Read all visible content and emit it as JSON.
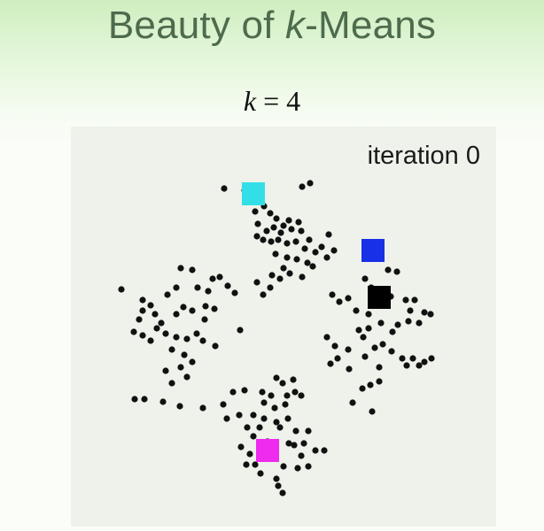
{
  "slide": {
    "title_prefix": "Beauty of ",
    "title_k": "k",
    "title_suffix": "-Means",
    "k_var": "k",
    "k_eq": " = 4"
  },
  "plot": {
    "iteration_label": "iteration 0"
  },
  "chart_data": {
    "type": "scatter",
    "title": "",
    "xlabel": "",
    "ylabel": "",
    "grid": false,
    "xlim": [
      0,
      480
    ],
    "ylim": [
      0,
      452
    ],
    "points": [
      [
        173,
        70
      ],
      [
        196,
        72
      ],
      [
        261,
        68
      ],
      [
        270,
        64
      ],
      [
        208,
        96
      ],
      [
        218,
        90
      ],
      [
        225,
        98
      ],
      [
        232,
        104
      ],
      [
        246,
        106
      ],
      [
        257,
        108
      ],
      [
        240,
        112
      ],
      [
        211,
        110
      ],
      [
        221,
        118
      ],
      [
        229,
        114
      ],
      [
        237,
        120
      ],
      [
        249,
        116
      ],
      [
        260,
        118
      ],
      [
        269,
        128
      ],
      [
        283,
        136
      ],
      [
        291,
        122
      ],
      [
        297,
        140
      ],
      [
        217,
        128
      ],
      [
        210,
        124
      ],
      [
        226,
        130
      ],
      [
        234,
        128
      ],
      [
        244,
        132
      ],
      [
        254,
        130
      ],
      [
        264,
        138
      ],
      [
        276,
        142
      ],
      [
        289,
        148
      ],
      [
        231,
        144
      ],
      [
        244,
        148
      ],
      [
        255,
        150
      ],
      [
        267,
        154
      ],
      [
        240,
        160
      ],
      [
        227,
        168
      ],
      [
        236,
        172
      ],
      [
        247,
        166
      ],
      [
        261,
        170
      ],
      [
        273,
        158
      ],
      [
        225,
        182
      ],
      [
        217,
        190
      ],
      [
        210,
        176
      ],
      [
        124,
        160
      ],
      [
        137,
        162
      ],
      [
        160,
        172
      ],
      [
        168,
        170
      ],
      [
        177,
        180
      ],
      [
        119,
        182
      ],
      [
        143,
        182
      ],
      [
        155,
        186
      ],
      [
        185,
        188
      ],
      [
        109,
        190
      ],
      [
        81,
        196
      ],
      [
        57,
        184
      ],
      [
        81,
        208
      ],
      [
        90,
        202
      ],
      [
        95,
        212
      ],
      [
        77,
        218
      ],
      [
        102,
        222
      ],
      [
        119,
        212
      ],
      [
        127,
        204
      ],
      [
        137,
        208
      ],
      [
        151,
        218
      ],
      [
        152,
        203
      ],
      [
        162,
        206
      ],
      [
        71,
        232
      ],
      [
        81,
        236
      ],
      [
        90,
        242
      ],
      [
        97,
        228
      ],
      [
        107,
        234
      ],
      [
        119,
        238
      ],
      [
        131,
        240
      ],
      [
        142,
        234
      ],
      [
        149,
        242
      ],
      [
        163,
        248
      ],
      [
        191,
        230
      ],
      [
        114,
        252
      ],
      [
        128,
        258
      ],
      [
        137,
        266
      ],
      [
        124,
        272
      ],
      [
        107,
        276
      ],
      [
        114,
        290
      ],
      [
        131,
        283
      ],
      [
        72,
        308
      ],
      [
        83,
        308
      ],
      [
        104,
        311
      ],
      [
        123,
        316
      ],
      [
        149,
        318
      ],
      [
        172,
        314
      ],
      [
        332,
        172
      ],
      [
        339,
        182
      ],
      [
        358,
        162
      ],
      [
        368,
        164
      ],
      [
        295,
        190
      ],
      [
        303,
        198
      ],
      [
        313,
        194
      ],
      [
        322,
        208
      ],
      [
        336,
        212
      ],
      [
        353,
        202
      ],
      [
        361,
        192
      ],
      [
        378,
        196
      ],
      [
        388,
        196
      ],
      [
        383,
        208
      ],
      [
        399,
        210
      ],
      [
        406,
        212
      ],
      [
        325,
        230
      ],
      [
        336,
        228
      ],
      [
        350,
        222
      ],
      [
        363,
        232
      ],
      [
        369,
        224
      ],
      [
        381,
        220
      ],
      [
        393,
        222
      ],
      [
        289,
        238
      ],
      [
        298,
        248
      ],
      [
        313,
        252
      ],
      [
        330,
        238
      ],
      [
        343,
        250
      ],
      [
        352,
        246
      ],
      [
        362,
        254
      ],
      [
        374,
        262
      ],
      [
        386,
        262
      ],
      [
        399,
        266
      ],
      [
        407,
        262
      ],
      [
        293,
        268
      ],
      [
        301,
        262
      ],
      [
        314,
        274
      ],
      [
        332,
        260
      ],
      [
        348,
        272
      ],
      [
        379,
        270
      ],
      [
        393,
        270
      ],
      [
        329,
        296
      ],
      [
        338,
        292
      ],
      [
        348,
        288
      ],
      [
        318,
        312
      ],
      [
        340,
        322
      ],
      [
        232,
        284
      ],
      [
        239,
        290
      ],
      [
        251,
        286
      ],
      [
        183,
        300
      ],
      [
        196,
        298
      ],
      [
        216,
        300
      ],
      [
        226,
        304
      ],
      [
        244,
        304
      ],
      [
        253,
        300
      ],
      [
        260,
        304
      ],
      [
        218,
        312
      ],
      [
        230,
        318
      ],
      [
        242,
        314
      ],
      [
        176,
        330
      ],
      [
        190,
        326
      ],
      [
        206,
        326
      ],
      [
        218,
        330
      ],
      [
        232,
        334
      ],
      [
        245,
        330
      ],
      [
        199,
        340
      ],
      [
        213,
        340
      ],
      [
        236,
        340
      ],
      [
        254,
        344
      ],
      [
        268,
        344
      ],
      [
        206,
        350
      ],
      [
        222,
        356
      ],
      [
        246,
        358
      ],
      [
        252,
        360
      ],
      [
        263,
        358
      ],
      [
        192,
        362
      ],
      [
        202,
        370
      ],
      [
        215,
        366
      ],
      [
        260,
        372
      ],
      [
        276,
        366
      ],
      [
        286,
        366
      ],
      [
        198,
        382
      ],
      [
        208,
        382
      ],
      [
        240,
        384
      ],
      [
        256,
        386
      ],
      [
        268,
        384
      ],
      [
        214,
        392
      ],
      [
        232,
        398
      ],
      [
        234,
        406
      ],
      [
        239,
        414
      ]
    ],
    "centroids": [
      {
        "color": "cyan",
        "hex": "#33dfe6",
        "x": 206,
        "y": 76
      },
      {
        "color": "blue",
        "hex": "#1830e6",
        "x": 341,
        "y": 140
      },
      {
        "color": "black",
        "hex": "#000000",
        "x": 348,
        "y": 193
      },
      {
        "color": "magenta",
        "hex": "#ee2bee",
        "x": 222,
        "y": 366
      }
    ]
  }
}
